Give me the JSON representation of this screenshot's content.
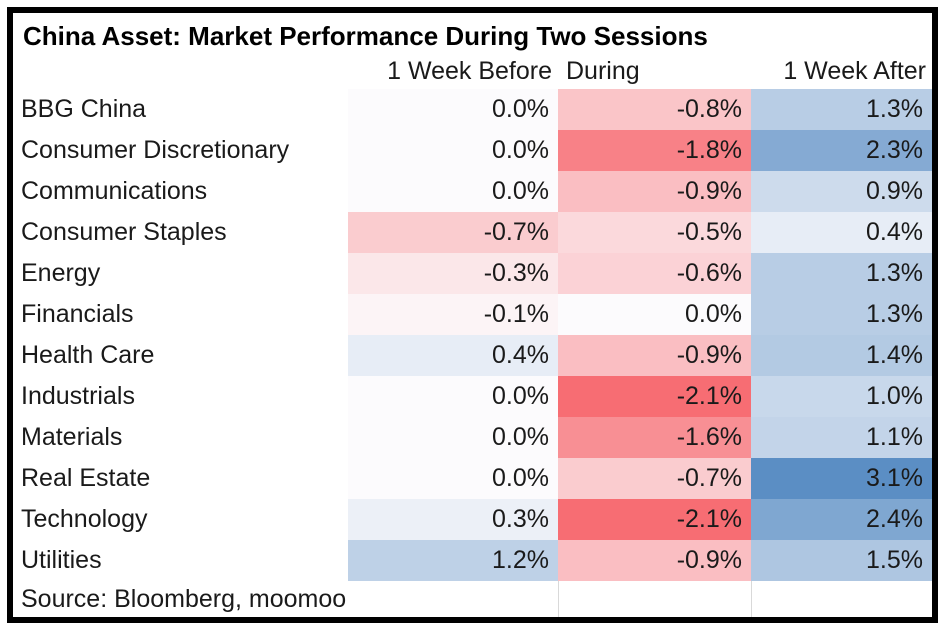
{
  "chart_data": {
    "type": "heatmap",
    "title": "China Asset: Market Performance During Two Sessions",
    "columns": [
      "1 Week Before",
      "During",
      "1 Week After"
    ],
    "categories": [
      "BBG China",
      "Consumer Discretionary",
      "Communications",
      "Consumer Staples",
      "Energy",
      "Financials",
      "Health Care",
      "Industrials",
      "Materials",
      "Real Estate",
      "Technology",
      "Utilities"
    ],
    "series": [
      {
        "name": "1 Week Before",
        "values": [
          0.0,
          0.0,
          0.0,
          -0.7,
          -0.3,
          -0.1,
          0.4,
          0.0,
          0.0,
          0.0,
          0.3,
          1.2
        ]
      },
      {
        "name": "During",
        "values": [
          -0.8,
          -1.8,
          -0.9,
          -0.5,
          -0.6,
          0.0,
          -0.9,
          -2.1,
          -1.6,
          -0.7,
          -2.1,
          -0.9
        ]
      },
      {
        "name": "1 Week After",
        "values": [
          1.3,
          2.3,
          0.9,
          0.4,
          1.3,
          1.3,
          1.4,
          1.0,
          1.1,
          3.1,
          2.4,
          1.5
        ]
      }
    ],
    "value_format": {
      "suffix": "%",
      "decimals": 1
    },
    "colors": {
      "negative_max": "#F76D73",
      "positive_max": "#5B8EC4",
      "base": "#FCFBFD",
      "border": "#000000",
      "grid_line": "#D9D9D9",
      "text": "#1A1A1A"
    },
    "scale": {
      "negative_limit": 2.1,
      "positive_limit": 3.1
    },
    "source_note": "Source: Bloomberg, moomoo"
  }
}
